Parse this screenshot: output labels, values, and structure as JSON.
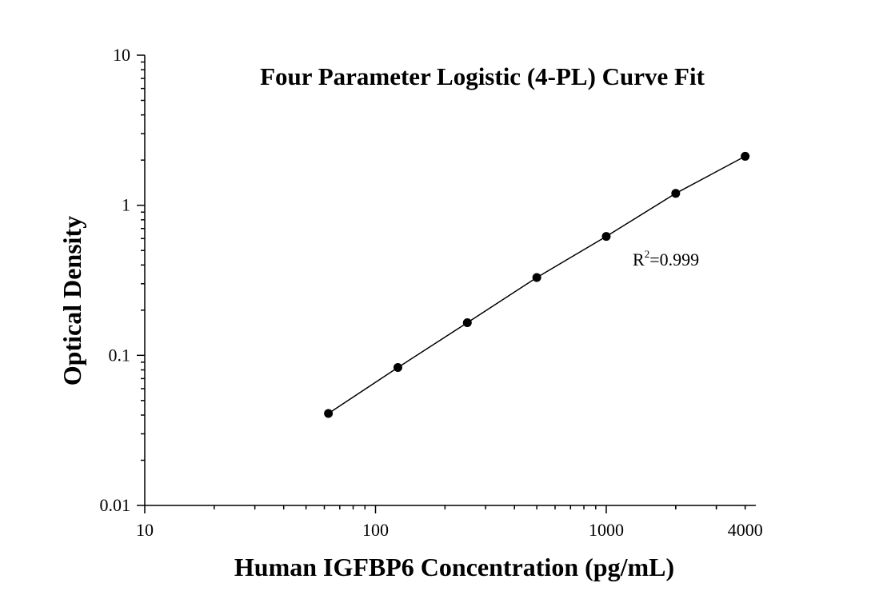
{
  "chart_data": {
    "type": "scatter",
    "title": "Four Parameter Logistic (4-PL) Curve Fit",
    "xlabel": "Human IGFBP6 Concentration (pg/mL)",
    "ylabel": "Optical Density",
    "x_scale": "log",
    "y_scale": "log",
    "xlim": [
      10,
      4000
    ],
    "ylim": [
      0.01,
      10
    ],
    "x_ticks": [
      "10",
      "100",
      "1000",
      "4000"
    ],
    "x_tick_values": [
      10,
      100,
      1000,
      4000
    ],
    "y_ticks": [
      "0.01",
      "0.1",
      "1",
      "10"
    ],
    "y_tick_values": [
      0.01,
      0.1,
      1,
      10
    ],
    "grid": false,
    "series": [
      {
        "points": [
          {
            "x": 62.5,
            "y": 0.041
          },
          {
            "x": 125,
            "y": 0.083
          },
          {
            "x": 250,
            "y": 0.165
          },
          {
            "x": 500,
            "y": 0.33
          },
          {
            "x": 1000,
            "y": 0.62
          },
          {
            "x": 2000,
            "y": 1.2
          },
          {
            "x": 4000,
            "y": 2.12
          }
        ]
      }
    ],
    "fit_curve": "4-PL",
    "annotation": {
      "base": "R",
      "superscript": "2",
      "value_text": "=0.999"
    }
  }
}
